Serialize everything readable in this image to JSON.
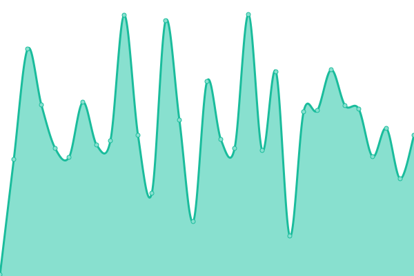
{
  "chart_data": {
    "type": "area",
    "title": "",
    "xlabel": "",
    "ylabel": "",
    "x": [
      0,
      1,
      2,
      3,
      4,
      5,
      6,
      7,
      8,
      9,
      10,
      11,
      12,
      13,
      14,
      15,
      16,
      17,
      18,
      19,
      20,
      21,
      22,
      23,
      24,
      25,
      26,
      27,
      28,
      29,
      30
    ],
    "values": [
      2,
      169,
      329,
      248,
      185,
      172,
      252,
      190,
      196,
      378,
      204,
      120,
      370,
      226,
      79,
      282,
      198,
      185,
      379,
      182,
      296,
      58,
      238,
      240,
      299,
      247,
      242,
      173,
      214,
      141,
      204
    ],
    "xlim": [
      0,
      30
    ],
    "ylim": [
      0,
      400
    ],
    "grid": false,
    "axes_visible": false,
    "curve": "smooth",
    "markers": true,
    "colors": {
      "line": "#1abc9c",
      "fill": "#88e0cf",
      "marker_fill": "#88e0cf",
      "marker_stroke": "#1abc9c"
    }
  }
}
